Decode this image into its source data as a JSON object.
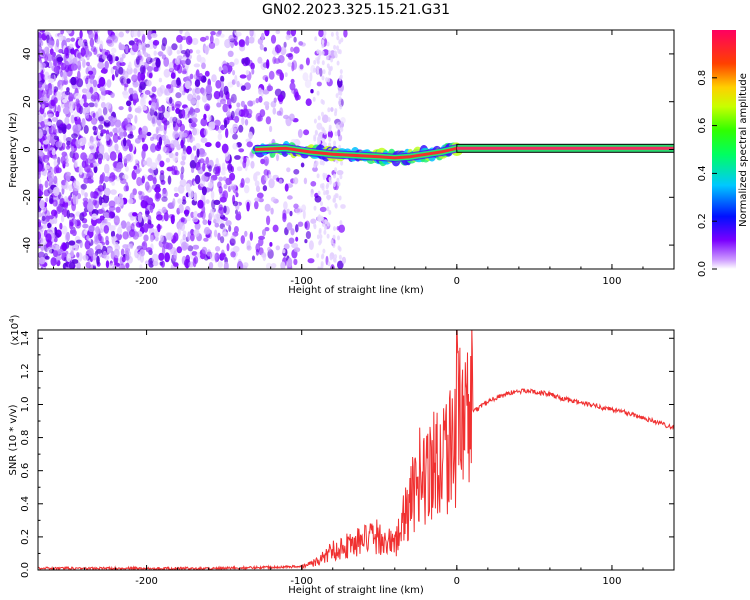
{
  "title": "GN02.2023.325.15.21.G31",
  "colors": {
    "amp_line": "#e8282c",
    "snr_line": "#f03030",
    "axis": "#000000"
  },
  "colorbar": {
    "label": "Normalized spectral amplitude",
    "ticks": [
      "0.0",
      "0.2",
      "0.4",
      "0.6",
      "0.8"
    ],
    "tick_values": [
      0.0,
      0.2,
      0.4,
      0.6,
      0.8
    ],
    "range": [
      0,
      1
    ]
  },
  "chart_data": [
    {
      "type": "heatmap",
      "title": "",
      "xlabel": "Height of straight line (km)",
      "ylabel": "Frequency (Hz)",
      "xlim": [
        -270,
        140
      ],
      "ylim": [
        -50,
        50
      ],
      "x_ticks": [
        -200,
        -100,
        0,
        100
      ],
      "x_tick_labels": [
        "-200",
        "-100",
        "0",
        "100"
      ],
      "y_ticks": [
        -40,
        -20,
        0,
        20,
        40
      ],
      "y_tick_labels": [
        "-40",
        "-20",
        "0",
        "20",
        "40"
      ],
      "ridge": [
        {
          "x": -130,
          "f": 0.0
        },
        {
          "x": -110,
          "f": 0.5
        },
        {
          "x": -95,
          "f": -1.0
        },
        {
          "x": -80,
          "f": -2.0
        },
        {
          "x": -65,
          "f": -2.5
        },
        {
          "x": -50,
          "f": -3.0
        },
        {
          "x": -40,
          "f": -3.5
        },
        {
          "x": -30,
          "f": -3.0
        },
        {
          "x": -20,
          "f": -2.0
        },
        {
          "x": -10,
          "f": -1.0
        },
        {
          "x": 0,
          "f": 0.5
        },
        {
          "x": 140,
          "f": 0.5
        }
      ]
    },
    {
      "type": "line",
      "title": "",
      "xlabel": "Height of straight line (km)",
      "ylabel": "SNR (10 * v/v)",
      "y_scale_note": "(x10",
      "y_scale_exp": "4",
      "y_scale_close": ")",
      "xlim": [
        -270,
        140
      ],
      "ylim": [
        0,
        1.45
      ],
      "x_ticks": [
        -200,
        -100,
        0,
        100
      ],
      "x_tick_labels": [
        "-200",
        "-100",
        "0",
        "100"
      ],
      "y_ticks": [
        0.0,
        0.2,
        0.4,
        0.6,
        0.8,
        1.0,
        1.2,
        1.4
      ],
      "y_tick_labels": [
        "0.0",
        "0.2",
        "0.4",
        "0.6",
        "0.8",
        "1.0",
        "1.2",
        "1.4"
      ],
      "series": [
        {
          "x": [
            -270,
            -200,
            -150,
            -110,
            -100,
            -90,
            -80,
            -70,
            -60,
            -50,
            -40,
            -35,
            -30,
            -25,
            -20,
            -15,
            -10,
            -5,
            0,
            5,
            10,
            20,
            30,
            40,
            50,
            60,
            70,
            80,
            90,
            100,
            110,
            120,
            130,
            140
          ],
          "values": [
            0.01,
            0.01,
            0.01,
            0.02,
            0.02,
            0.05,
            0.12,
            0.15,
            0.18,
            0.2,
            0.15,
            0.28,
            0.4,
            0.55,
            0.6,
            0.65,
            0.7,
            0.75,
            0.85,
            0.9,
            0.95,
            1.02,
            1.06,
            1.08,
            1.08,
            1.06,
            1.03,
            1.01,
            0.99,
            0.97,
            0.95,
            0.92,
            0.89,
            0.86
          ]
        }
      ]
    }
  ]
}
